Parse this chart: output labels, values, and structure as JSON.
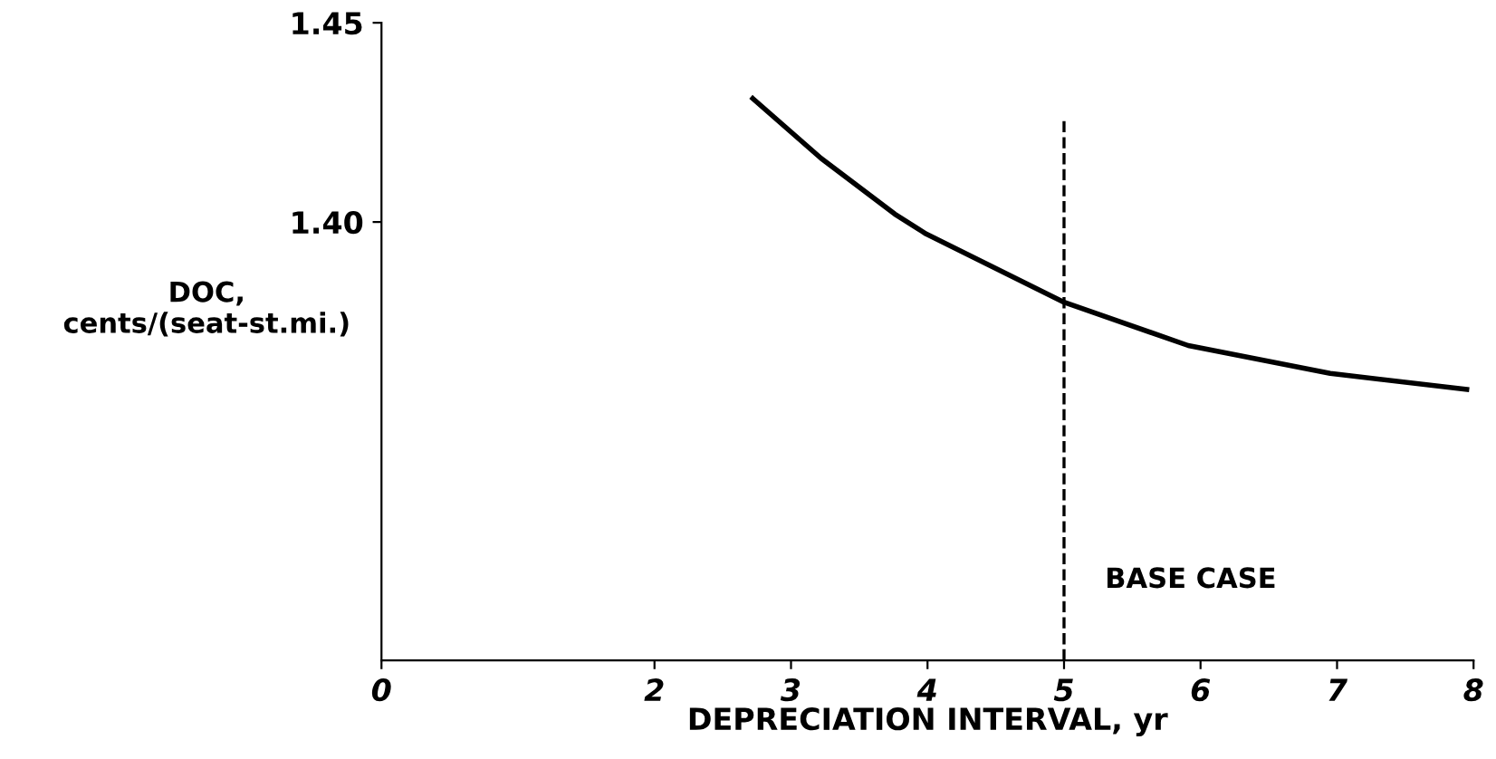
{
  "chart_data": {
    "type": "line",
    "xlabel": "DEPRECIATION INTERVAL, yr",
    "ylabel": "DOC,\ncents/(seat-st.mi.)",
    "x": [
      2.72,
      3.22,
      3.76,
      3.99,
      4.99,
      5.91,
      6.95,
      7.95
    ],
    "series": [
      {
        "color": "#000000",
        "values": [
          1.431,
          1.416,
          1.402,
          1.397,
          1.38,
          1.369,
          1.362,
          1.358
        ]
      }
    ],
    "xlim": [
      0,
      8
    ],
    "xticks": [
      0,
      2,
      3,
      4,
      5,
      6,
      7,
      8
    ],
    "ylim": [
      1.29,
      1.45
    ],
    "yticks": [
      {
        "value": 1.4,
        "label": "1.40"
      },
      1.45
    ],
    "ref_lines": [
      {
        "axis": "x",
        "value": 5,
        "label": "BASE CASE",
        "line_style": "dashed",
        "color": "#000000"
      }
    ],
    "grid": false,
    "legend": false,
    "marker": "none",
    "line_style": "solid"
  }
}
